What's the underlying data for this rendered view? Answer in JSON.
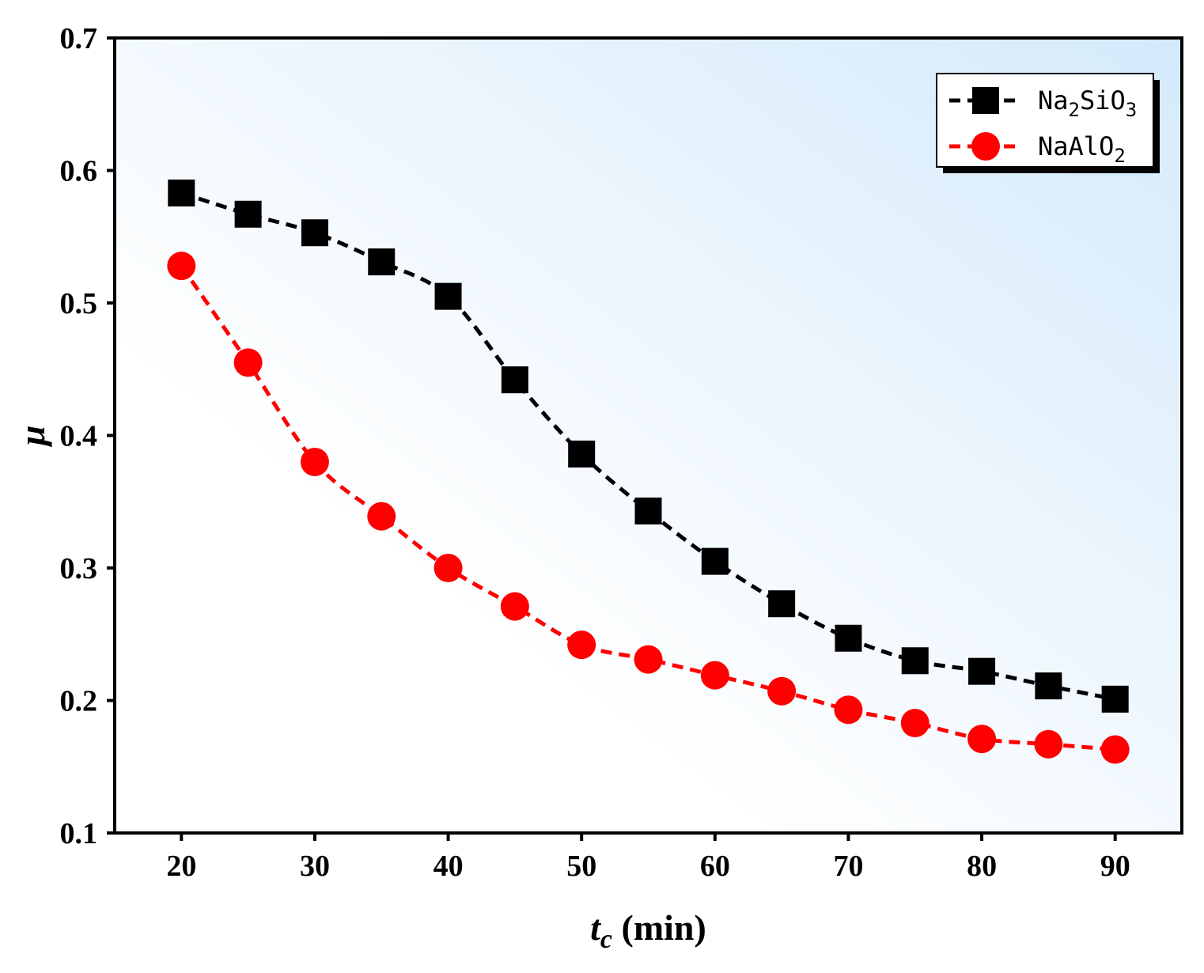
{
  "chart_data": {
    "type": "line",
    "title": "",
    "xlabel": {
      "var": "t",
      "sub": "c",
      "unit": "(min)"
    },
    "ylabel": "μ",
    "xlim": [
      15,
      95
    ],
    "ylim": [
      0.1,
      0.7
    ],
    "x_ticks": [
      20,
      30,
      40,
      50,
      60,
      70,
      80,
      90
    ],
    "x_tick_labels": [
      "20",
      "30",
      "40",
      "50",
      "60",
      "70",
      "80",
      "90"
    ],
    "y_ticks": [
      0.1,
      0.2,
      0.3,
      0.4,
      0.5,
      0.6,
      0.7
    ],
    "y_tick_labels": [
      "0.1",
      "0.2",
      "0.3",
      "0.4",
      "0.5",
      "0.6",
      "0.7"
    ],
    "x": [
      20,
      25,
      30,
      35,
      40,
      45,
      50,
      55,
      60,
      65,
      70,
      75,
      80,
      85,
      90
    ],
    "series": [
      {
        "name": "Na2SiO3",
        "label_parts": [
          {
            "text": "Na"
          },
          {
            "text": "2",
            "sub": true
          },
          {
            "text": "SiO"
          },
          {
            "text": "3",
            "sub": true
          }
        ],
        "marker": "square",
        "color": "#000000",
        "values": [
          0.583,
          0.567,
          0.553,
          0.531,
          0.505,
          0.442,
          0.386,
          0.343,
          0.305,
          0.273,
          0.247,
          0.23,
          0.222,
          0.211,
          0.201
        ]
      },
      {
        "name": "NaAlO2",
        "label_parts": [
          {
            "text": "NaAlO"
          },
          {
            "text": "2",
            "sub": true
          }
        ],
        "marker": "circle",
        "color": "#ff0000",
        "values": [
          0.528,
          0.455,
          0.38,
          0.339,
          0.3,
          0.271,
          0.242,
          0.231,
          0.219,
          0.207,
          0.193,
          0.183,
          0.171,
          0.167,
          0.163
        ]
      }
    ],
    "legend_position": "top-right",
    "grid": false,
    "background_gradient": [
      "#ffffff",
      "#d4eafb"
    ]
  }
}
